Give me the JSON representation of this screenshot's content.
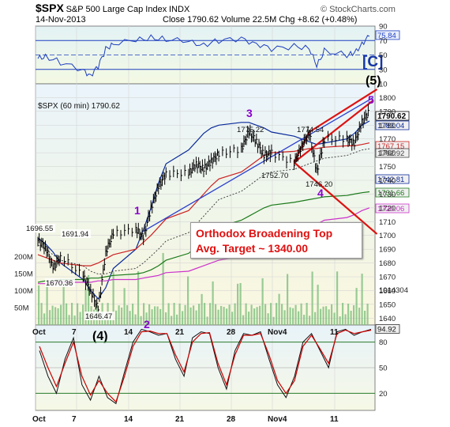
{
  "header": {
    "symbol": "$SPX",
    "name": "S&P 500 Large Cap Index",
    "exchange": "INDX",
    "date": "14-Nov-2013",
    "ohlc": "Close 1790.62  Volume 22.5M  Chg +8.62 (+0.48%)",
    "copyright": "© StockCharts.com"
  },
  "colors": {
    "price": "#000000",
    "wave_purple": "#8800cc",
    "channel_red": "#dd1111",
    "sma_blue": "#0a2a9a",
    "sma_red": "#cc2222",
    "sma_green": "#1a7a1a",
    "sma_magenta": "#cc33cc",
    "volume": "#7fbf7f",
    "rsi": "#1f3fbf",
    "osc_red": "#cc0000"
  },
  "chart_data": [
    {
      "type": "line",
      "panel": "rsi",
      "x_ticks": [],
      "ylim": [
        10,
        90
      ],
      "y_ticks": [
        10,
        30,
        50,
        70,
        90
      ],
      "last_value_label": "75.84",
      "series": [
        {
          "x": [
            "2013-10-01",
            "2013-10-02",
            "2013-10-04",
            "2013-10-07",
            "2013-10-08",
            "2013-10-09",
            "2013-10-10",
            "2013-10-11",
            "2013-10-14",
            "2013-10-16",
            "2013-10-18",
            "2013-10-21",
            "2013-10-23",
            "2013-10-25",
            "2013-10-28",
            "2013-10-30",
            "2013-11-01",
            "2013-11-04",
            "2013-11-06",
            "2013-11-07",
            "2013-11-08",
            "2013-11-11",
            "2013-11-12",
            "2013-11-13",
            "2013-11-14"
          ],
          "values": [
            45,
            48,
            40,
            28,
            22,
            34,
            58,
            66,
            70,
            74,
            72,
            68,
            64,
            70,
            72,
            66,
            58,
            62,
            60,
            34,
            56,
            50,
            52,
            66,
            75.84
          ]
        }
      ]
    },
    {
      "type": "line",
      "panel": "price",
      "title": "$SPX (60 min) 1790.62",
      "ylim": [
        1635,
        1810
      ],
      "y_ticks": [
        1640,
        1650,
        1660,
        1670,
        1680,
        1690,
        1700,
        1710,
        1720,
        1730,
        1740,
        1750,
        1760,
        1770,
        1780,
        1790,
        1800
      ],
      "x_ticks": [
        "Oct",
        "7",
        "14",
        "21",
        "28",
        "Nov4",
        "11"
      ],
      "series": [
        {
          "name": "$SPX",
          "x": [
            "2013-10-01",
            "2013-10-02",
            "2013-10-03",
            "2013-10-04",
            "2013-10-07",
            "2013-10-08",
            "2013-10-09",
            "2013-10-10",
            "2013-10-11",
            "2013-10-14",
            "2013-10-15",
            "2013-10-16",
            "2013-10-17",
            "2013-10-18",
            "2013-10-21",
            "2013-10-22",
            "2013-10-23",
            "2013-10-24",
            "2013-10-25",
            "2013-10-28",
            "2013-10-29",
            "2013-10-30",
            "2013-10-31",
            "2013-11-01",
            "2013-11-04",
            "2013-11-05",
            "2013-11-06",
            "2013-11-07",
            "2013-11-08",
            "2013-11-11",
            "2013-11-12",
            "2013-11-13",
            "2013-11-14"
          ],
          "values": [
            1696.55,
            1691.94,
            1676,
            1685,
            1670.36,
            1660,
            1646.47,
            1688,
            1701,
            1705,
            1698,
            1720,
            1735,
            1745,
            1745,
            1752,
            1748,
            1754,
            1759,
            1763,
            1775.22,
            1768,
            1758,
            1760,
            1752.7,
            1765,
            1774.54,
            1746.2,
            1770,
            1770,
            1767,
            1782,
            1790.62
          ]
        }
      ],
      "overlays": [
        {
          "name": "sma_blue",
          "values": [
            1698,
            1694,
            1688,
            1680,
            1668,
            1660,
            1654,
            1662,
            1676,
            1690,
            1704,
            1720,
            1738,
            1752,
            1762,
            1768,
            1774,
            1778,
            1780,
            1782,
            1782,
            1780,
            1778,
            1775,
            1772,
            1770,
            1768,
            1766,
            1767,
            1770,
            1774,
            1780,
            1783.04
          ]
        },
        {
          "name": "sma_red",
          "values": [
            1686,
            1684,
            1682,
            1680,
            1678,
            1678,
            1680,
            1683,
            1686,
            1690,
            1695,
            1700,
            1706,
            1712,
            1718,
            1724,
            1730,
            1736,
            1741,
            1746,
            1750,
            1754,
            1758,
            1760,
            1761,
            1762,
            1763,
            1763,
            1764,
            1765,
            1765,
            1766,
            1767.15
          ]
        },
        {
          "name": "sma_green",
          "values": [
            1666,
            1667,
            1667,
            1668,
            1668,
            1669,
            1669,
            1670,
            1671,
            1672,
            1673,
            1675,
            1678,
            1682,
            1687,
            1692,
            1697,
            1702,
            1706,
            1711,
            1714,
            1717,
            1720,
            1722,
            1724,
            1725,
            1726,
            1727,
            1728,
            1729,
            1730,
            1731,
            1731.66
          ]
        },
        {
          "name": "sma_magenta",
          "values": [
            1665,
            1665,
            1666,
            1666,
            1666,
            1666,
            1667,
            1667,
            1668,
            1668,
            1669,
            1670,
            1671,
            1673,
            1674,
            1676,
            1678,
            1680,
            1682,
            1685,
            1687,
            1690,
            1693,
            1696,
            1699,
            1702,
            1705,
            1708,
            1711,
            1713,
            1715,
            1718,
            1720.06
          ]
        },
        {
          "name": "sma_dotted",
          "values": [
            1693,
            1690,
            1686,
            1682,
            1678,
            1674,
            1672,
            1672,
            1674,
            1676,
            1680,
            1685,
            1690,
            1696,
            1702,
            1708,
            1714,
            1720,
            1726,
            1732,
            1736,
            1740,
            1744,
            1746,
            1748,
            1750,
            1752,
            1754,
            1756,
            1758,
            1760,
            1762,
            1762.92
          ]
        }
      ],
      "right_labels": [
        "1790.62",
        "1783.04",
        "1767.15",
        "1762.92",
        "1742.81",
        "1731.66",
        "1720.06"
      ],
      "left_price_labels": [
        "1696.55",
        "1691.94",
        "1670.36",
        "1646.47"
      ],
      "peak_labels": [
        "1775.22",
        "1774.54",
        "1752.70",
        "1746.20"
      ],
      "wave_labels": [
        "1",
        "2",
        "3",
        "4",
        "5",
        "(4)",
        "(5)",
        "[C]"
      ],
      "volume_ticks": [
        "200M",
        "150M",
        "100M",
        "50M"
      ],
      "volume_scale_label": "1014304",
      "annotation": {
        "line1": "Orthodox Broadening Top",
        "line2": "Avg. Target ~ 1340.00"
      }
    },
    {
      "type": "line",
      "panel": "oscillator",
      "ylim": [
        0,
        100
      ],
      "y_ticks": [
        20,
        50,
        80
      ],
      "x_ticks": [
        "Oct",
        "7",
        "14",
        "21",
        "28",
        "Nov4",
        "11"
      ],
      "last_value_label": "94.92",
      "series": [
        {
          "x": [
            0,
            1,
            2,
            3,
            4,
            5,
            6,
            7,
            8,
            9,
            10,
            11,
            12,
            13,
            14,
            15,
            16,
            17,
            18,
            19,
            20,
            21,
            22,
            23,
            24,
            25,
            26,
            27,
            28,
            29,
            30,
            31,
            32,
            33,
            34,
            35,
            36,
            37,
            38,
            39
          ],
          "values": [
            70,
            40,
            20,
            60,
            85,
            30,
            12,
            40,
            15,
            8,
            45,
            80,
            95,
            92,
            88,
            90,
            60,
            40,
            85,
            92,
            90,
            50,
            25,
            70,
            90,
            88,
            92,
            60,
            30,
            15,
            40,
            80,
            90,
            70,
            50,
            92,
            95,
            88,
            92,
            94.92
          ]
        },
        {
          "x": [
            0,
            1,
            2,
            3,
            4,
            5,
            6,
            7,
            8,
            9,
            10,
            11,
            12,
            13,
            14,
            15,
            16,
            17,
            18,
            19,
            20,
            21,
            22,
            23,
            24,
            25,
            26,
            27,
            28,
            29,
            30,
            31,
            32,
            33,
            34,
            35,
            36,
            37,
            38,
            39
          ],
          "values": [
            75,
            50,
            28,
            55,
            80,
            40,
            18,
            35,
            20,
            10,
            40,
            75,
            92,
            93,
            90,
            90,
            65,
            45,
            80,
            90,
            91,
            55,
            30,
            65,
            88,
            88,
            90,
            65,
            35,
            20,
            35,
            75,
            88,
            72,
            55,
            90,
            94,
            90,
            92,
            94
          ]
        }
      ]
    }
  ]
}
